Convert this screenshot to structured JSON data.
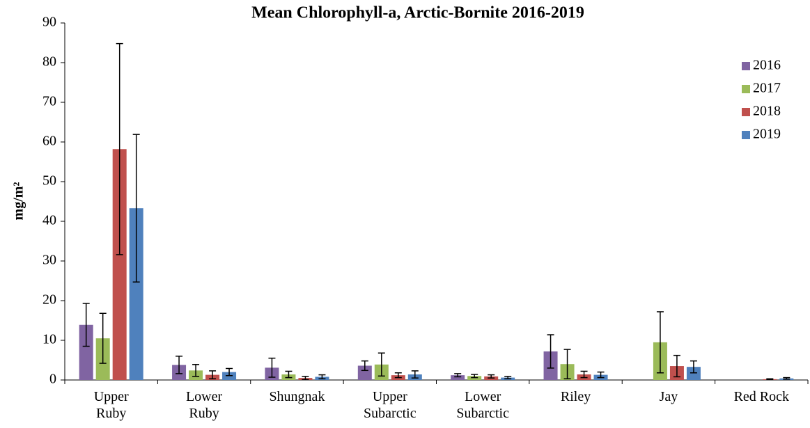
{
  "chart_data": {
    "type": "bar",
    "title": "Mean Chlorophyll-a, Arctic-Bornite 2016-2019",
    "y_label": "mg/m²",
    "categories": [
      "Upper Ruby",
      "Lower Ruby",
      "Shungnak",
      "Upper Subarctic",
      "Lower Subarctic",
      "Riley",
      "Jay",
      "Red Rock"
    ],
    "series": [
      {
        "name": "2016",
        "color": "#8064a2",
        "values": [
          13.9,
          3.8,
          3.1,
          3.6,
          1.2,
          7.2,
          null,
          null
        ],
        "errors": [
          5.4,
          2.2,
          2.4,
          1.2,
          0.4,
          4.2,
          null,
          null
        ]
      },
      {
        "name": "2017",
        "color": "#9bbb59",
        "values": [
          10.5,
          2.4,
          1.4,
          3.9,
          1.0,
          4.0,
          9.5,
          null
        ],
        "errors": [
          6.3,
          1.5,
          0.8,
          2.9,
          0.4,
          3.7,
          7.7,
          null
        ]
      },
      {
        "name": "2018",
        "color": "#c0504d",
        "values": [
          58.2,
          1.3,
          0.5,
          1.2,
          0.9,
          1.4,
          3.5,
          0.2
        ],
        "errors": [
          26.6,
          1.0,
          0.4,
          0.6,
          0.4,
          0.8,
          2.7,
          0.1
        ]
      },
      {
        "name": "2019",
        "color": "#4f81bd",
        "values": [
          43.3,
          2.0,
          0.8,
          1.4,
          0.6,
          1.3,
          3.3,
          0.4
        ],
        "errors": [
          18.6,
          0.9,
          0.5,
          0.9,
          0.3,
          0.7,
          1.5,
          0.2
        ]
      }
    ],
    "ylim": [
      0,
      90
    ],
    "yticks": [
      0,
      10,
      20,
      30,
      40,
      50,
      60,
      70,
      80,
      90
    ],
    "grid": false,
    "legend": "right"
  }
}
